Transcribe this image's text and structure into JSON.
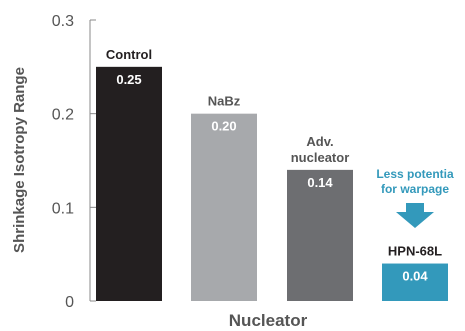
{
  "chart_data": {
    "type": "bar",
    "categories": [
      "Control",
      "NaBz",
      "Adv. nucleator",
      "HPN-68L"
    ],
    "category_label_lines": [
      [
        "Control"
      ],
      [
        "NaBz"
      ],
      [
        "Adv.",
        "nucleator"
      ],
      [
        "HPN-68L"
      ]
    ],
    "values": [
      0.25,
      0.2,
      0.14,
      0.04
    ],
    "value_labels": [
      "0.25",
      "0.20",
      "0.14",
      "0.04"
    ],
    "bar_colors": [
      "#231f20",
      "#a7a9ac",
      "#6d6e71",
      "#3399bb"
    ],
    "category_label_colors": [
      "#231f20",
      "#555555",
      "#555555",
      "#231f20"
    ],
    "xlabel": "Nucleator",
    "ylabel": "Shrinkage Isotropy Range",
    "ylim": [
      0,
      0.3
    ],
    "yticks": [
      0,
      0.1,
      0.2,
      0.3
    ],
    "ytick_labels": [
      "0",
      "0.1",
      "0.2",
      "0.3"
    ],
    "grid": false,
    "annotation": {
      "lines": [
        "Less potentia",
        "for warpage"
      ],
      "color": "#3399bb",
      "target_category": "HPN-68L",
      "arrow": "down-arrow-icon"
    }
  }
}
